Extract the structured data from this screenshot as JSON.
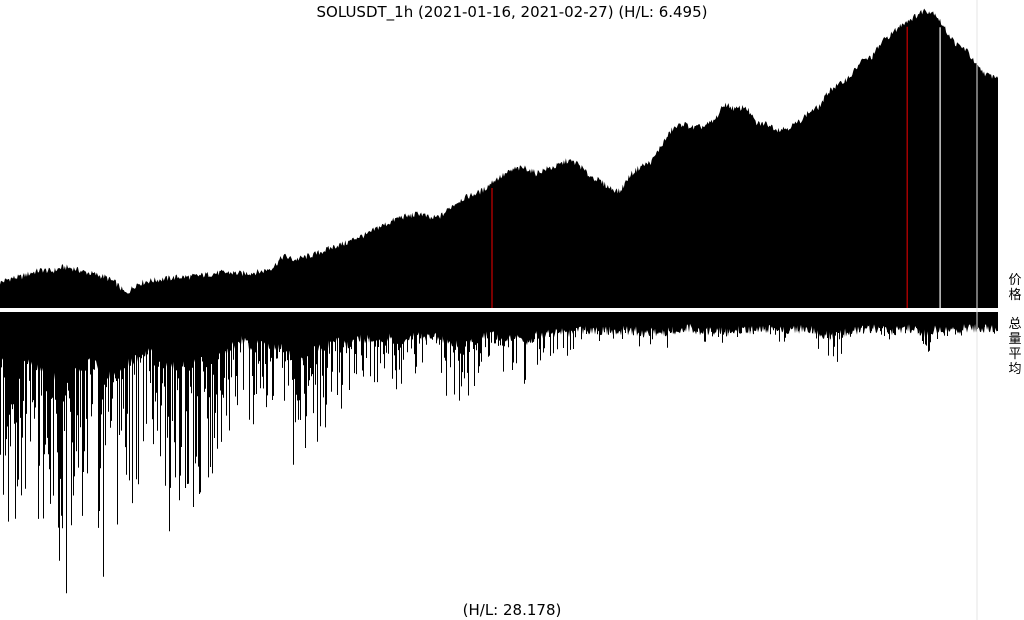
{
  "chart_data": {
    "type": "area",
    "title": "SOLUSDT_1h (2021-01-16, 2021-02-27) (H/L: 6.495)",
    "footer": "(H/L: 28.178)",
    "colors": {
      "fill": "#000000",
      "marker": "#cc0000",
      "background": "#ffffff"
    },
    "panels": [
      {
        "name": "价格",
        "ylabel": "价格",
        "orientation": "up",
        "value_hl": 6.495,
        "series": [
          {
            "values": [
              0.04,
              0.055,
              0.06,
              0.075,
              0.085,
              0.08,
              0.095,
              0.09,
              0.078,
              0.07,
              0.06,
              0.04,
              0.0,
              0.035,
              0.045,
              0.05,
              0.055,
              0.06,
              0.06,
              0.065,
              0.07,
              0.075,
              0.075,
              0.072,
              0.075,
              0.08,
              0.095,
              0.135,
              0.12,
              0.13,
              0.14,
              0.155,
              0.17,
              0.18,
              0.2,
              0.21,
              0.235,
              0.25,
              0.27,
              0.275,
              0.285,
              0.265,
              0.275,
              0.31,
              0.335,
              0.35,
              0.365,
              0.4,
              0.42,
              0.44,
              0.445,
              0.425,
              0.44,
              0.45,
              0.47,
              0.46,
              0.42,
              0.4,
              0.375,
              0.36,
              0.42,
              0.45,
              0.465,
              0.525,
              0.58,
              0.6,
              0.585,
              0.59,
              0.61,
              0.67,
              0.65,
              0.66,
              0.6,
              0.6,
              0.58,
              0.585,
              0.605,
              0.64,
              0.66,
              0.72,
              0.74,
              0.77,
              0.82,
              0.835,
              0.89,
              0.92,
              0.955,
              0.975,
              1.0,
              0.99,
              0.93,
              0.88,
              0.86,
              0.8,
              0.77,
              0.765
            ]
          }
        ],
        "markers": [
          {
            "color": "#cc0000",
            "position": 0.493
          },
          {
            "color": "#cc0000",
            "position": 0.909
          },
          {
            "color": "#ffffff",
            "position": 0.942
          }
        ]
      },
      {
        "name": "总量平均",
        "ylabel": "总量平均",
        "orientation": "down",
        "value_hl": 28.178,
        "series": [
          {
            "values": [
              0.58,
              0.86,
              0.72,
              0.66,
              0.88,
              0.93,
              1.0,
              0.82,
              0.74,
              0.62,
              0.97,
              0.88,
              0.7,
              0.62,
              0.48,
              0.54,
              0.8,
              0.7,
              0.76,
              0.63,
              0.6,
              0.58,
              0.4,
              0.28,
              0.4,
              0.34,
              0.42,
              0.38,
              0.66,
              0.58,
              0.45,
              0.4,
              0.3,
              0.36,
              0.28,
              0.25,
              0.26,
              0.22,
              0.31,
              0.24,
              0.2,
              0.22,
              0.24,
              0.35,
              0.38,
              0.28,
              0.18,
              0.16,
              0.27,
              0.22,
              0.34,
              0.2,
              0.16,
              0.14,
              0.15,
              0.12,
              0.1,
              0.11,
              0.09,
              0.11,
              0.1,
              0.13,
              0.12,
              0.16,
              0.1,
              0.06,
              0.07,
              0.12,
              0.1,
              0.14,
              0.09,
              0.1,
              0.08,
              0.07,
              0.12,
              0.09,
              0.08,
              0.07,
              0.14,
              0.2,
              0.15,
              0.12,
              0.08,
              0.07,
              0.09,
              0.1,
              0.08,
              0.07,
              0.17,
              0.1,
              0.08,
              0.09,
              0.07,
              0.06,
              0.08,
              0.07
            ]
          }
        ]
      }
    ],
    "grid": false,
    "legend": "none"
  }
}
